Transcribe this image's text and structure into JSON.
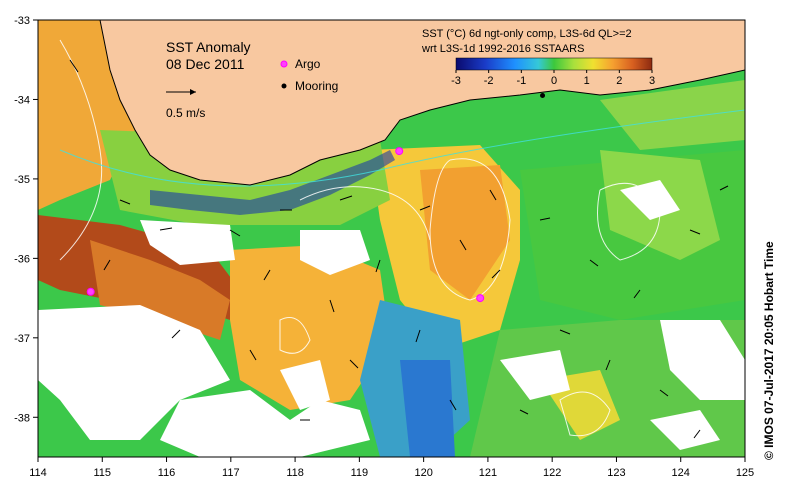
{
  "title": "SST Anomaly",
  "date": "08 Dec 2011",
  "product_line1": "SST (°C) 6d ngt-only comp, L3S-6d QL>=2",
  "product_line2": "wrt L3S-1d 1992-2016 SSTAARS",
  "legend": {
    "argo": "Argo",
    "mooring": "Mooring",
    "vector_scale": "0.5 m/s"
  },
  "colorbar": {
    "ticks": [
      "-3",
      "-2",
      "-1",
      "0",
      "1",
      "2",
      "3"
    ],
    "min": -3,
    "max": 3
  },
  "credit": "© IMOS 07-Jul-2017 20:05 Hobart Time",
  "axes": {
    "x_ticks": [
      "114",
      "115",
      "116",
      "117",
      "118",
      "119",
      "120",
      "121",
      "122",
      "123",
      "124",
      "125"
    ],
    "y_ticks": [
      "-33",
      "-34",
      "-35",
      "-36",
      "-37",
      "-38"
    ],
    "lon_range": [
      114,
      125
    ],
    "lat_range": [
      -38.5,
      -33
    ]
  },
  "argo_floats": [
    {
      "lon": 114.82,
      "lat": -36.42
    },
    {
      "lon": 119.62,
      "lat": -34.65
    },
    {
      "lon": 120.88,
      "lat": -36.5
    }
  ],
  "mooring": {
    "lon": 121.85,
    "lat": -33.95
  },
  "colors": {
    "land": "#f8c8a0",
    "coast": "#000000",
    "cloud": "#ffffff"
  }
}
